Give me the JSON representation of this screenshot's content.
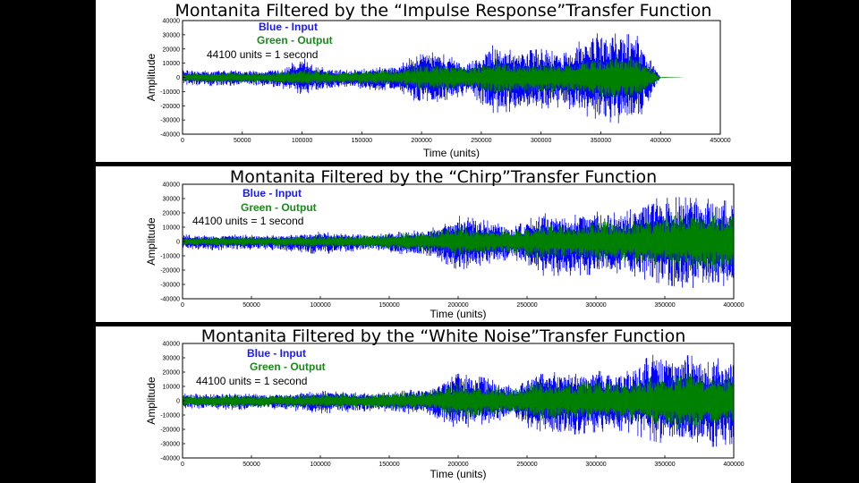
{
  "chart_data": [
    {
      "type": "line",
      "title": "Montanita Filtered by the “Impulse Response”Transfer Function",
      "legend_text": [
        "Blue - Input",
        "Green - Output",
        "44100 units = 1 second"
      ],
      "xlabel": "Time (units)",
      "ylabel": "Amplitude",
      "xlim": [
        0,
        450000
      ],
      "ylim": [
        -40000,
        40000
      ],
      "xticks": [
        "0",
        "50000",
        "100000",
        "150000",
        "200000",
        "250000",
        "300000",
        "350000",
        "400000",
        "450000"
      ],
      "yticks": [
        "-40000",
        "-30000",
        "-20000",
        "-10000",
        "0",
        "10000",
        "20000",
        "30000",
        "40000"
      ],
      "grid": false,
      "series": [
        {
          "name": "Input",
          "color": "#0000ff",
          "x": [
            0,
            20000,
            40000,
            60000,
            80000,
            100000,
            120000,
            140000,
            160000,
            180000,
            200000,
            220000,
            240000,
            260000,
            280000,
            300000,
            320000,
            340000,
            360000,
            380000,
            400000
          ],
          "max": [
            5000,
            4500,
            5000,
            4500,
            5000,
            14000,
            6000,
            5000,
            7000,
            8000,
            19000,
            16000,
            10000,
            23000,
            18000,
            20000,
            17000,
            31000,
            31000,
            30000,
            0
          ],
          "min": [
            -5000,
            -6000,
            -6500,
            -5500,
            -7000,
            -12000,
            -9000,
            -7000,
            -9000,
            -9000,
            -20000,
            -16000,
            -12000,
            -25000,
            -24000,
            -22000,
            -21000,
            -28000,
            -32000,
            -33000,
            0
          ]
        },
        {
          "name": "Output",
          "color": "#008000",
          "x": [
            0,
            20000,
            40000,
            60000,
            80000,
            100000,
            120000,
            140000,
            160000,
            180000,
            200000,
            220000,
            240000,
            260000,
            280000,
            300000,
            320000,
            340000,
            360000,
            380000,
            400000,
            420000
          ],
          "max": [
            3000,
            3000,
            3500,
            3000,
            3500,
            6000,
            4000,
            3500,
            5000,
            5500,
            9000,
            9000,
            7000,
            12000,
            10000,
            11000,
            10000,
            13000,
            15000,
            15000,
            500,
            0
          ],
          "min": [
            -3000,
            -3500,
            -4000,
            -3500,
            -4000,
            -6000,
            -5000,
            -4000,
            -5500,
            -5500,
            -9000,
            -9000,
            -7000,
            -12000,
            -11000,
            -11000,
            -10000,
            -13000,
            -15000,
            -15000,
            -500,
            0
          ]
        }
      ]
    },
    {
      "type": "line",
      "title": "Montanita Filtered by the “Chirp”Transfer Function",
      "legend_text": [
        "Blue - Input",
        "Green - Output",
        "44100 units = 1 second"
      ],
      "xlabel": "Time (units)",
      "ylabel": "Amplitude",
      "xlim": [
        0,
        400000
      ],
      "ylim": [
        -40000,
        40000
      ],
      "xticks": [
        "0",
        "50000",
        "100000",
        "150000",
        "200000",
        "250000",
        "300000",
        "350000",
        "400000"
      ],
      "yticks": [
        "-40000",
        "-30000",
        "-20000",
        "-10000",
        "0",
        "10000",
        "20000",
        "30000",
        "40000"
      ],
      "grid": false,
      "series": [
        {
          "name": "Input",
          "color": "#0000ff",
          "x": [
            0,
            20000,
            40000,
            60000,
            80000,
            100000,
            120000,
            140000,
            160000,
            180000,
            200000,
            220000,
            240000,
            260000,
            280000,
            300000,
            320000,
            340000,
            360000,
            380000,
            400000
          ],
          "max": [
            5000,
            4000,
            5000,
            4000,
            4500,
            7000,
            5000,
            5000,
            7000,
            9000,
            18000,
            15000,
            10000,
            20000,
            18000,
            21000,
            20000,
            30000,
            31000,
            30000,
            28000
          ],
          "min": [
            -5000,
            -6000,
            -6000,
            -5500,
            -7000,
            -9000,
            -7000,
            -6000,
            -9000,
            -10000,
            -20000,
            -16000,
            -12000,
            -24000,
            -24000,
            -23000,
            -22000,
            -28000,
            -32000,
            -33000,
            -30000
          ]
        },
        {
          "name": "Output",
          "color": "#008000",
          "x": [
            0,
            20000,
            40000,
            60000,
            80000,
            100000,
            120000,
            140000,
            160000,
            180000,
            200000,
            220000,
            240000,
            260000,
            280000,
            300000,
            320000,
            340000,
            360000,
            380000,
            400000
          ],
          "max": [
            2500,
            3000,
            3500,
            3000,
            3500,
            4000,
            4000,
            4500,
            6000,
            7000,
            10000,
            9000,
            8000,
            12000,
            11000,
            14000,
            13000,
            16000,
            18000,
            20000,
            22000
          ],
          "min": [
            -2500,
            -3000,
            -3500,
            -3000,
            -3500,
            -4000,
            -4000,
            -4500,
            -6000,
            -7000,
            -10000,
            -9000,
            -8000,
            -12000,
            -11000,
            -14000,
            -13000,
            -16000,
            -18000,
            -20000,
            -22000
          ]
        }
      ]
    },
    {
      "type": "line",
      "title": "Montanita Filtered by the “White Noise”Transfer Function",
      "legend_text": [
        "Blue - Input",
        "Green - Output",
        "44100 units = 1 second"
      ],
      "xlabel": "Time (units)",
      "ylabel": "Amplitude",
      "xlim": [
        0,
        400000
      ],
      "ylim": [
        -40000,
        40000
      ],
      "xticks": [
        "0",
        "50000",
        "100000",
        "150000",
        "200000",
        "250000",
        "300000",
        "350000",
        "400000"
      ],
      "yticks": [
        "-40000",
        "-30000",
        "-20000",
        "-10000",
        "0",
        "10000",
        "20000",
        "30000",
        "40000"
      ],
      "grid": false,
      "series": [
        {
          "name": "Input",
          "color": "#0000ff",
          "x": [
            0,
            20000,
            40000,
            60000,
            80000,
            100000,
            120000,
            140000,
            160000,
            180000,
            200000,
            220000,
            240000,
            260000,
            280000,
            300000,
            320000,
            340000,
            360000,
            380000,
            400000
          ],
          "max": [
            5000,
            4500,
            5000,
            4500,
            5000,
            7000,
            6000,
            5000,
            7000,
            9000,
            19000,
            16000,
            10000,
            22000,
            18000,
            21000,
            19000,
            32000,
            32000,
            31000,
            28000
          ],
          "min": [
            -5000,
            -6000,
            -6500,
            -5500,
            -7000,
            -9000,
            -8000,
            -7000,
            -9000,
            -10000,
            -20000,
            -16000,
            -12000,
            -25000,
            -24000,
            -22000,
            -21000,
            -28000,
            -32000,
            -33000,
            -30000
          ]
        },
        {
          "name": "Output",
          "color": "#008000",
          "x": [
            0,
            20000,
            40000,
            60000,
            80000,
            100000,
            120000,
            140000,
            160000,
            180000,
            200000,
            220000,
            240000,
            260000,
            280000,
            300000,
            320000,
            340000,
            360000,
            380000,
            400000
          ],
          "max": [
            3500,
            3500,
            4000,
            3500,
            4000,
            5000,
            5000,
            4500,
            6000,
            7000,
            12000,
            11000,
            8000,
            14000,
            12000,
            14000,
            13000,
            16000,
            20000,
            18000,
            17000
          ],
          "min": [
            -3500,
            -4000,
            -4500,
            -4000,
            -4500,
            -5000,
            -5000,
            -5000,
            -6000,
            -7000,
            -12000,
            -11000,
            -8000,
            -14000,
            -12000,
            -14000,
            -13000,
            -16000,
            -20000,
            -18000,
            -17000
          ]
        }
      ]
    }
  ]
}
